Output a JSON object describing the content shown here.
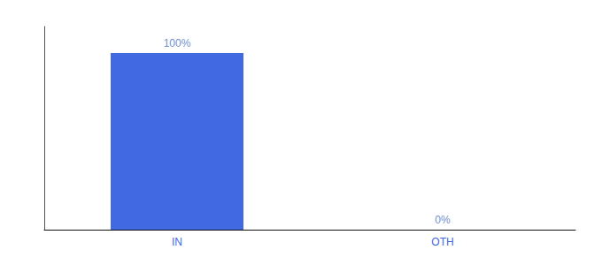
{
  "chart_data": {
    "type": "bar",
    "categories": [
      "IN",
      "OTH"
    ],
    "values": [
      100,
      0
    ],
    "value_labels": [
      "100%",
      "0%"
    ],
    "data_labels": true,
    "color": "#4169e1",
    "ylim": [
      0,
      115
    ],
    "grid": false,
    "tick_labels": "x"
  }
}
